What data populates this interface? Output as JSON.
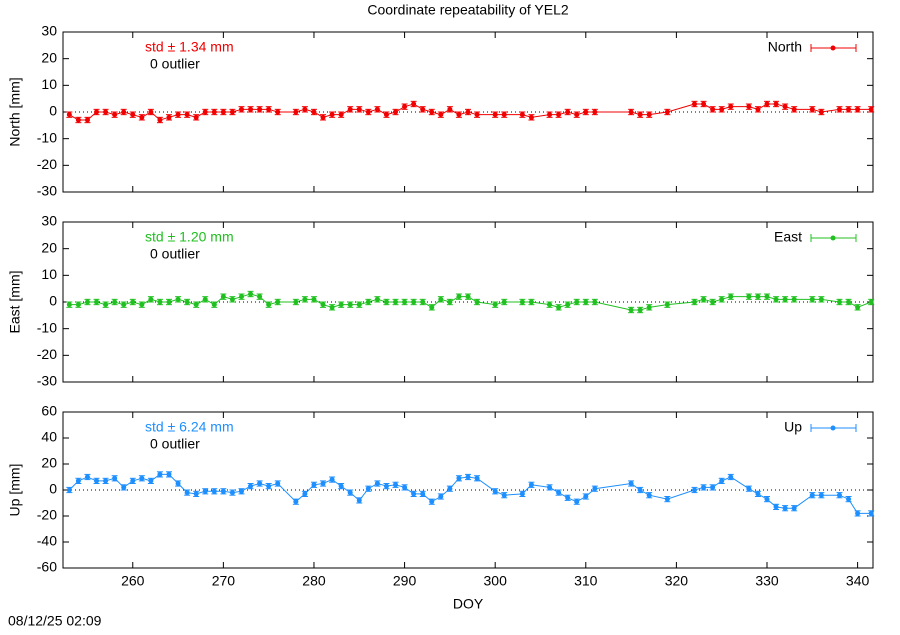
{
  "title": "Coordinate repeatability of YEL2",
  "timestamp": "08/12/25 02:09",
  "chart_data": [
    {
      "type": "line",
      "ylabel": "North [mm]",
      "xlim": [
        252.3,
        341.7
      ],
      "ylim": [
        -30,
        30
      ],
      "yticks": [
        -30,
        -20,
        -10,
        0,
        10,
        20,
        30
      ],
      "xticks": [
        260,
        270,
        280,
        290,
        300,
        310,
        320,
        330,
        340
      ],
      "reference_line": 0,
      "annotations": [
        "std ± 1.34 mm",
        "0 outlier"
      ],
      "legend": "top-right",
      "x": [
        253,
        254,
        255,
        256,
        257,
        258,
        259,
        260,
        261,
        262,
        263,
        264,
        265,
        266,
        267,
        268,
        269,
        270,
        271,
        272,
        273,
        274,
        275,
        276,
        278,
        279,
        280,
        281,
        282,
        283,
        284,
        285,
        286,
        287,
        288,
        289,
        290,
        291,
        292,
        293,
        294,
        295,
        296,
        297,
        298,
        300,
        301,
        303,
        304,
        306,
        307,
        308,
        309,
        310,
        311,
        315,
        316,
        317,
        319,
        322,
        323,
        324,
        325,
        326,
        328,
        329,
        330,
        331,
        332,
        333,
        335,
        336,
        338,
        339,
        340,
        341.5
      ],
      "series": [
        {
          "name": "North",
          "color": "#f00000",
          "error": 1,
          "values": [
            -1,
            -3,
            -3,
            0,
            0,
            -1,
            0,
            -1,
            -2,
            0,
            -3,
            -2,
            -1,
            -1,
            -2,
            0,
            0,
            0,
            0,
            1,
            1,
            1,
            1,
            0,
            0,
            1,
            0,
            -2,
            -1,
            -1,
            1,
            1,
            0,
            1,
            -1,
            0,
            2,
            3,
            1,
            0,
            -1,
            1,
            -1,
            0,
            -1,
            -1,
            -1,
            -1,
            -2,
            -1,
            -1,
            0,
            -1,
            0,
            0,
            0,
            -1,
            -1,
            0,
            3,
            3,
            1,
            1,
            2,
            2,
            1,
            3,
            3,
            2,
            1,
            1,
            0,
            1,
            1,
            1,
            1
          ]
        }
      ]
    },
    {
      "type": "line",
      "ylabel": "East [mm]",
      "xlim": [
        252.3,
        341.7
      ],
      "ylim": [
        -30,
        30
      ],
      "yticks": [
        -30,
        -20,
        -10,
        0,
        10,
        20,
        30
      ],
      "xticks": [
        260,
        270,
        280,
        290,
        300,
        310,
        320,
        330,
        340
      ],
      "reference_line": 0,
      "annotations": [
        "std ± 1.20 mm",
        "0 outlier"
      ],
      "legend": "top-right",
      "x": [
        253,
        254,
        255,
        256,
        257,
        258,
        259,
        260,
        261,
        262,
        263,
        264,
        265,
        266,
        267,
        268,
        269,
        270,
        271,
        272,
        273,
        274,
        275,
        276,
        278,
        279,
        280,
        281,
        282,
        283,
        284,
        285,
        286,
        287,
        288,
        289,
        290,
        291,
        292,
        293,
        294,
        295,
        296,
        297,
        298,
        300,
        301,
        303,
        304,
        306,
        307,
        308,
        309,
        310,
        311,
        315,
        316,
        317,
        319,
        322,
        323,
        324,
        325,
        326,
        328,
        329,
        330,
        331,
        332,
        333,
        335,
        336,
        338,
        339,
        340,
        341.5
      ],
      "series": [
        {
          "name": "East",
          "color": "#20c020",
          "error": 1,
          "values": [
            -1,
            -1,
            0,
            0,
            -1,
            0,
            -1,
            0,
            -1,
            1,
            0,
            0,
            1,
            0,
            -1,
            1,
            -1,
            2,
            1,
            2,
            3,
            2,
            -1,
            0,
            0,
            1,
            1,
            -1,
            -2,
            -1,
            -1,
            -1,
            0,
            1,
            0,
            0,
            0,
            0,
            0,
            -2,
            1,
            0,
            2,
            2,
            0,
            -1,
            0,
            0,
            0,
            -1,
            -2,
            -1,
            0,
            0,
            0,
            -3,
            -3,
            -2,
            -1,
            0,
            1,
            0,
            1,
            2,
            2,
            2,
            2,
            1,
            1,
            1,
            1,
            1,
            0,
            0,
            -2,
            0
          ]
        }
      ]
    },
    {
      "type": "line",
      "ylabel": "Up [mm]",
      "xlabel": "DOY",
      "xlim": [
        252.3,
        341.7
      ],
      "ylim": [
        -60,
        60
      ],
      "yticks": [
        -60,
        -40,
        -20,
        0,
        20,
        40,
        60
      ],
      "xticks": [
        260,
        270,
        280,
        290,
        300,
        310,
        320,
        330,
        340
      ],
      "reference_line": 0,
      "annotations": [
        "std ± 6.24 mm",
        "0 outlier"
      ],
      "legend": "top-right",
      "x": [
        253,
        254,
        255,
        256,
        257,
        258,
        259,
        260,
        261,
        262,
        263,
        264,
        265,
        266,
        267,
        268,
        269,
        270,
        271,
        272,
        273,
        274,
        275,
        276,
        278,
        279,
        280,
        281,
        282,
        283,
        284,
        285,
        286,
        287,
        288,
        289,
        290,
        291,
        292,
        293,
        294,
        295,
        296,
        297,
        298,
        300,
        301,
        303,
        304,
        306,
        307,
        308,
        309,
        310,
        311,
        315,
        316,
        317,
        319,
        322,
        323,
        324,
        325,
        326,
        328,
        329,
        330,
        331,
        332,
        333,
        335,
        336,
        338,
        339,
        340,
        341.5
      ],
      "series": [
        {
          "name": "Up",
          "color": "#1e8fff",
          "error": 2,
          "values": [
            0,
            7,
            10,
            7,
            7,
            9,
            2,
            7,
            9,
            7,
            12,
            12,
            5,
            -2,
            -3,
            -1,
            -1,
            -1,
            -2,
            -1,
            3,
            5,
            3,
            5,
            -9,
            -3,
            4,
            5,
            8,
            3,
            -2,
            -8,
            1,
            5,
            3,
            4,
            2,
            -3,
            -3,
            -9,
            -5,
            1,
            9,
            10,
            9,
            -1,
            -4,
            -3,
            4,
            2,
            -2,
            -6,
            -9,
            -5,
            1,
            5,
            0,
            -4,
            -7,
            0,
            2,
            2,
            7,
            10,
            1,
            -3,
            -7,
            -13,
            -14,
            -14,
            -4,
            -4,
            -4,
            -7,
            -18,
            -18
          ]
        }
      ]
    }
  ]
}
